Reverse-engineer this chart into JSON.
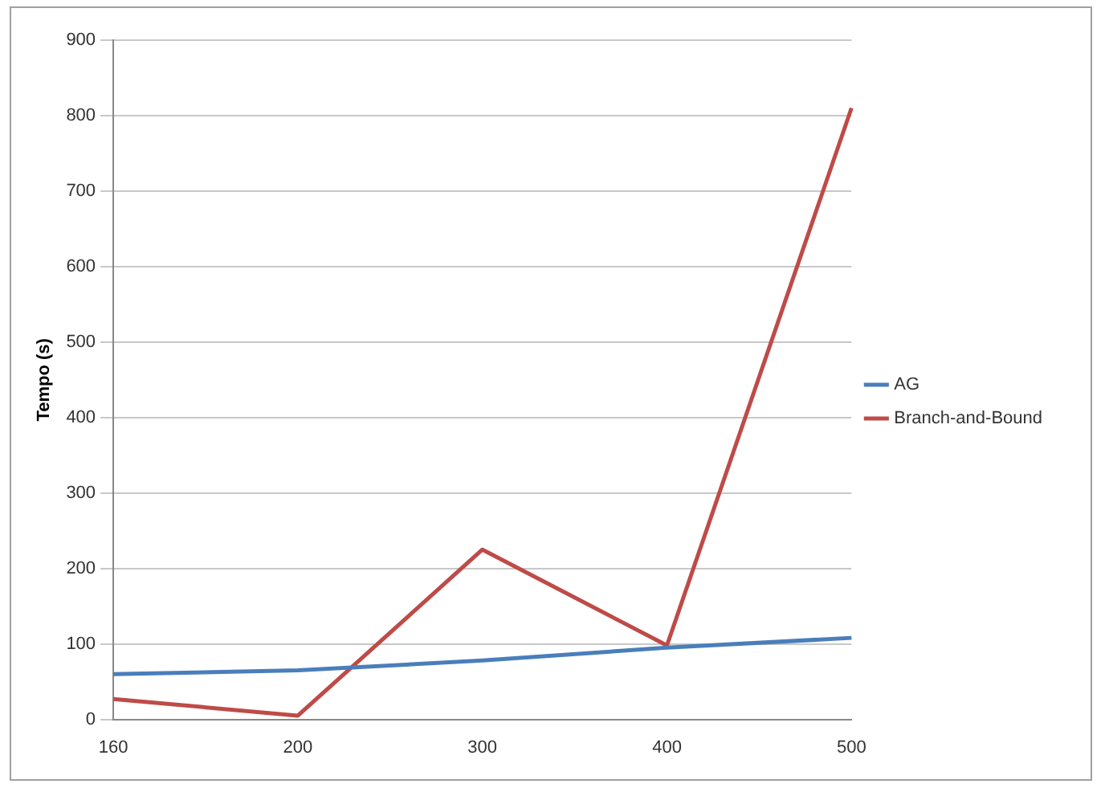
{
  "chart_data": {
    "type": "line",
    "ylabel": "Tempo (s)",
    "categories": [
      "160",
      "200",
      "300",
      "400",
      "500"
    ],
    "series": [
      {
        "name": "AG",
        "color": "#4a7ebb",
        "values": [
          60,
          65,
          78,
          95,
          108
        ]
      },
      {
        "name": "Branch-and-Bound",
        "color": "#be4b48",
        "values": [
          27,
          5,
          225,
          98,
          810
        ]
      }
    ],
    "ylim": [
      0,
      900
    ],
    "yticks": [
      0,
      100,
      200,
      300,
      400,
      500,
      600,
      700,
      800,
      900
    ],
    "grid": "y",
    "legend": "right",
    "marker": "none"
  }
}
